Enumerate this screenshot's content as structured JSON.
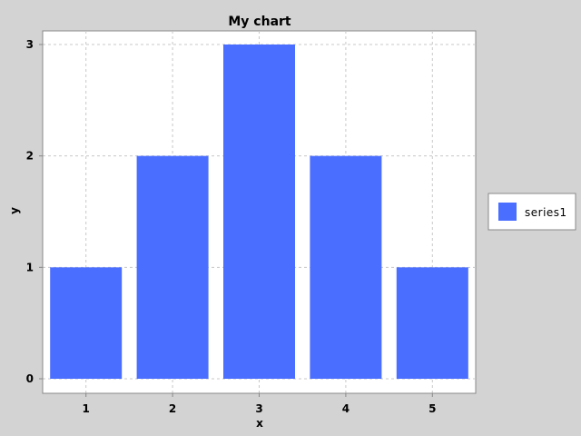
{
  "chart_data": {
    "type": "bar",
    "title": "My chart",
    "xlabel": "x",
    "ylabel": "y",
    "categories": [
      "1",
      "2",
      "3",
      "4",
      "5"
    ],
    "series": [
      {
        "name": "series1",
        "values": [
          1,
          2,
          3,
          2,
          1
        ],
        "color": "#4a6eff"
      }
    ],
    "ylim": [
      0,
      3
    ],
    "yticks": [
      "0",
      "1",
      "2",
      "3"
    ],
    "grid": true,
    "legend_position": "right"
  },
  "colors": {
    "background": "#d3d3d3",
    "plot_background": "#ffffff",
    "bar": "#4a6eff",
    "grid": "#c8c8c8"
  }
}
